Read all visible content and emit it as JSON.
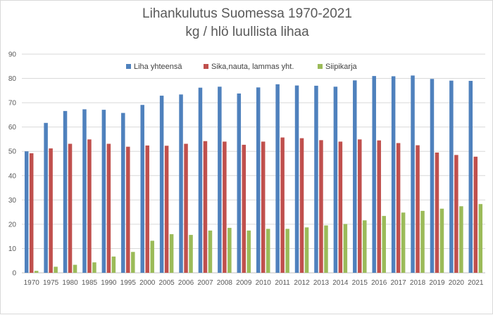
{
  "chart_data": {
    "type": "bar",
    "title": "Lihankulutus Suomessa 1970-2021",
    "subtitle": "kg / hlö luullista lihaa",
    "categories": [
      "1970",
      "1975",
      "1980",
      "1985",
      "1990",
      "1995",
      "2000",
      "2005",
      "2006",
      "2007",
      "2008",
      "2009",
      "2010",
      "2011",
      "2012",
      "2013",
      "2014",
      "2015",
      "2016",
      "2017",
      "2018",
      "2019",
      "2020",
      "2021"
    ],
    "series": [
      {
        "name": "Liha yhteensä",
        "color": "#4F81BD",
        "values": [
          50,
          61.7,
          66.6,
          67.3,
          67.1,
          65.8,
          69.1,
          72.9,
          73.4,
          76.2,
          76.6,
          73.8,
          76.3,
          77.6,
          77.1,
          77.0,
          76.6,
          79.2,
          81.0,
          80.9,
          81.2,
          79.8,
          79.1,
          79.0
        ]
      },
      {
        "name": "Sika,nauta, lammas yht.",
        "color": "#C0504D",
        "values": [
          49.2,
          51.2,
          53.1,
          54.9,
          53.1,
          51.9,
          52.4,
          52.3,
          53.1,
          54.2,
          54.0,
          52.7,
          54.0,
          55.7,
          55.4,
          54.6,
          54.0,
          54.9,
          54.5,
          53.4,
          52.5,
          49.5,
          48.5,
          47.8
        ]
      },
      {
        "name": "Siipikarja",
        "color": "#9BBB59",
        "values": [
          0.8,
          2.5,
          3.3,
          4.3,
          6.7,
          8.6,
          13.2,
          15.9,
          15.6,
          17.4,
          18.5,
          17.4,
          18.1,
          18.1,
          18.7,
          19.5,
          20.1,
          21.6,
          23.4,
          24.8,
          25.5,
          26.4,
          27.4,
          28.3
        ]
      }
    ],
    "ylim": [
      0,
      90
    ],
    "yticks": [
      "0",
      "10",
      "20",
      "30",
      "40",
      "50",
      "60",
      "70",
      "80",
      "90"
    ],
    "grid": true,
    "legend": "top-center"
  }
}
